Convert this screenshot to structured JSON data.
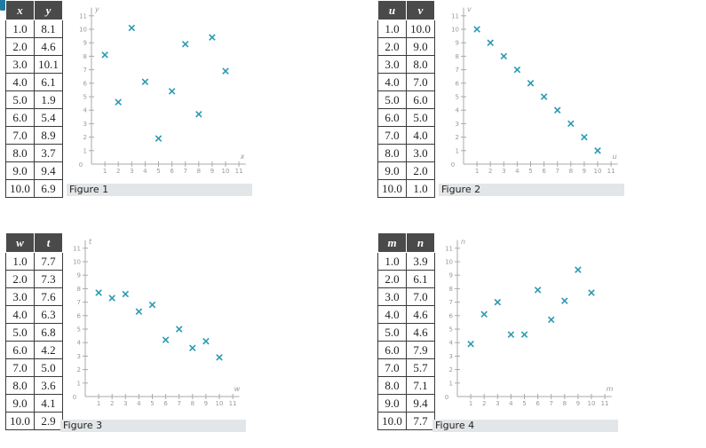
{
  "chart_data": [
    {
      "type": "scatter",
      "caption": "Figure 1",
      "columns": [
        "x",
        "y"
      ],
      "xlabel": "x",
      "ylabel": "y",
      "xlim": [
        0,
        11
      ],
      "ylim": [
        0,
        11
      ],
      "x": [
        1.0,
        2.0,
        3.0,
        4.0,
        5.0,
        6.0,
        7.0,
        8.0,
        9.0,
        10.0
      ],
      "y": [
        8.1,
        4.6,
        10.1,
        6.1,
        1.9,
        5.4,
        8.9,
        3.7,
        9.4,
        6.9
      ],
      "x_labels": [
        "1.0",
        "2.0",
        "3.0",
        "4.0",
        "5.0",
        "6.0",
        "7.0",
        "8.0",
        "9.0",
        "10.0"
      ],
      "y_labels": [
        "8.1",
        "4.6",
        "10.1",
        "6.1",
        "1.9",
        "5.4",
        "8.9",
        "3.7",
        "9.4",
        "6.9"
      ]
    },
    {
      "type": "scatter",
      "caption": "Figure 2",
      "columns": [
        "u",
        "v"
      ],
      "xlabel": "u",
      "ylabel": "v",
      "xlim": [
        0,
        11
      ],
      "ylim": [
        0,
        11
      ],
      "x": [
        1.0,
        2.0,
        3.0,
        4.0,
        5.0,
        6.0,
        7.0,
        8.0,
        9.0,
        10.0
      ],
      "y": [
        10.0,
        9.0,
        8.0,
        7.0,
        6.0,
        5.0,
        4.0,
        3.0,
        2.0,
        1.0
      ],
      "x_labels": [
        "1.0",
        "2.0",
        "3.0",
        "4.0",
        "5.0",
        "6.0",
        "7.0",
        "8.0",
        "9.0",
        "10.0"
      ],
      "y_labels": [
        "10.0",
        "9.0",
        "8.0",
        "7.0",
        "6.0",
        "5.0",
        "4.0",
        "3.0",
        "2.0",
        "1.0"
      ]
    },
    {
      "type": "scatter",
      "caption": "Figure 3",
      "columns": [
        "w",
        "t"
      ],
      "xlabel": "w",
      "ylabel": "t",
      "xlim": [
        0,
        11
      ],
      "ylim": [
        0,
        11
      ],
      "x": [
        1.0,
        2.0,
        3.0,
        4.0,
        5.0,
        6.0,
        7.0,
        8.0,
        9.0,
        10.0
      ],
      "y": [
        7.7,
        7.3,
        7.6,
        6.3,
        6.8,
        4.2,
        5.0,
        3.6,
        4.1,
        2.9
      ],
      "x_labels": [
        "1.0",
        "2.0",
        "3.0",
        "4.0",
        "5.0",
        "6.0",
        "7.0",
        "8.0",
        "9.0",
        "10.0"
      ],
      "y_labels": [
        "7.7",
        "7.3",
        "7.6",
        "6.3",
        "6.8",
        "4.2",
        "5.0",
        "3.6",
        "4.1",
        "2.9"
      ]
    },
    {
      "type": "scatter",
      "caption": "Figure 4",
      "columns": [
        "m",
        "n"
      ],
      "xlabel": "m",
      "ylabel": "n",
      "xlim": [
        0,
        11
      ],
      "ylim": [
        0,
        11
      ],
      "x": [
        1.0,
        2.0,
        3.0,
        4.0,
        5.0,
        6.0,
        7.0,
        8.0,
        9.0,
        10.0
      ],
      "y": [
        3.9,
        6.1,
        7.0,
        4.6,
        4.6,
        7.9,
        5.7,
        7.1,
        9.4,
        7.7
      ],
      "x_labels": [
        "1.0",
        "2.0",
        "3.0",
        "4.0",
        "5.0",
        "6.0",
        "7.0",
        "8.0",
        "9.0",
        "10.0"
      ],
      "y_labels": [
        "3.9",
        "6.1",
        "7.0",
        "4.6",
        "4.6",
        "7.9",
        "5.7",
        "7.1",
        "9.4",
        "7.7"
      ]
    }
  ],
  "ticks": [
    "0",
    "1",
    "2",
    "3",
    "4",
    "5",
    "6",
    "7",
    "8",
    "9",
    "10",
    "11"
  ],
  "colors": {
    "marker": "#2a9ab0",
    "axis": "#aaaaaa",
    "header_bg": "#4a4a4a",
    "caption_bg": "#e3e6e8"
  },
  "badge_icon": "check-icon"
}
